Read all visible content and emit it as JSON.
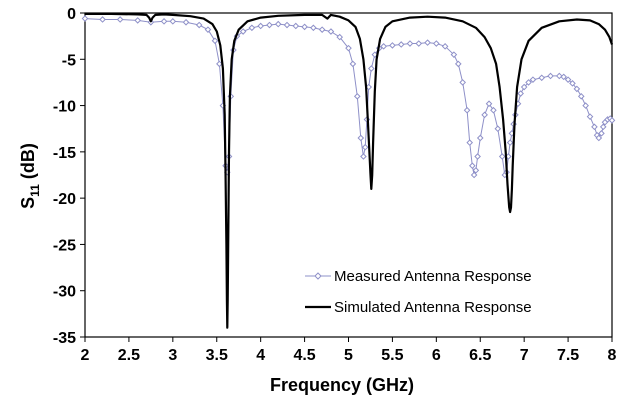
{
  "chart_data": {
    "type": "line",
    "title": "",
    "xlabel": "Frequency (GHz)",
    "ylabel_main": "S",
    "ylabel_sub": "11",
    "ylabel_unit": " (dB)",
    "xlim": [
      2,
      8
    ],
    "ylim": [
      -35,
      0
    ],
    "x_ticks": [
      2,
      2.5,
      3,
      3.5,
      4,
      4.5,
      5,
      5.5,
      6,
      6.5,
      7,
      7.5,
      8
    ],
    "y_ticks": [
      0,
      -5,
      -10,
      -15,
      -20,
      -25,
      -30,
      -35
    ],
    "x_tick_labels": [
      "2",
      "2.5",
      "3",
      "3.5",
      "4",
      "4.5",
      "5",
      "5.5",
      "6",
      "6.5",
      "7",
      "7.5",
      "8"
    ],
    "y_tick_labels": [
      "0",
      "-5",
      "-10",
      "-15",
      "-20",
      "-25",
      "-30",
      "-35"
    ],
    "grid": false,
    "legend_position": "bottom-right",
    "series": [
      {
        "name": "Measured Antenna Response",
        "color": "#8e90c8",
        "marker": "diamond",
        "x": [
          2.0,
          2.2,
          2.4,
          2.6,
          2.75,
          2.9,
          3.0,
          3.15,
          3.3,
          3.4,
          3.48,
          3.53,
          3.57,
          3.6,
          3.62,
          3.64,
          3.66,
          3.69,
          3.73,
          3.8,
          3.9,
          4.0,
          4.1,
          4.2,
          4.3,
          4.4,
          4.5,
          4.6,
          4.7,
          4.8,
          4.9,
          5.0,
          5.05,
          5.1,
          5.14,
          5.17,
          5.19,
          5.21,
          5.23,
          5.26,
          5.3,
          5.35,
          5.4,
          5.5,
          5.6,
          5.7,
          5.8,
          5.9,
          6.0,
          6.1,
          6.2,
          6.25,
          6.3,
          6.35,
          6.38,
          6.41,
          6.43,
          6.45,
          6.47,
          6.5,
          6.55,
          6.6,
          6.65,
          6.7,
          6.75,
          6.78,
          6.8,
          6.82,
          6.84,
          6.86,
          6.88,
          6.9,
          6.93,
          6.96,
          7.0,
          7.05,
          7.1,
          7.2,
          7.3,
          7.4,
          7.45,
          7.5,
          7.55,
          7.6,
          7.65,
          7.7,
          7.75,
          7.8,
          7.83,
          7.85,
          7.88,
          7.9,
          7.92,
          7.95,
          7.98,
          8.0
        ],
        "y": [
          -0.6,
          -0.7,
          -0.7,
          -0.8,
          -1.0,
          -0.9,
          -0.9,
          -1.0,
          -1.3,
          -1.8,
          -3.0,
          -5.5,
          -10.0,
          -16.5,
          -17.2,
          -15.5,
          -9.0,
          -4.0,
          -2.5,
          -2.0,
          -1.6,
          -1.4,
          -1.3,
          -1.2,
          -1.3,
          -1.4,
          -1.5,
          -1.6,
          -1.8,
          -2.0,
          -2.6,
          -3.8,
          -5.5,
          -9.0,
          -13.5,
          -15.5,
          -14.5,
          -11.5,
          -8.0,
          -6.0,
          -4.5,
          -3.8,
          -3.6,
          -3.5,
          -3.4,
          -3.3,
          -3.3,
          -3.2,
          -3.3,
          -3.6,
          -4.5,
          -5.5,
          -7.5,
          -10.5,
          -14.0,
          -16.5,
          -17.5,
          -17.0,
          -15.5,
          -13.5,
          -11.0,
          -9.8,
          -10.5,
          -12.5,
          -15.5,
          -17.5,
          -17.2,
          -15.5,
          -14.0,
          -13.0,
          -12.0,
          -11.0,
          -9.8,
          -8.7,
          -8.0,
          -7.5,
          -7.2,
          -7.0,
          -6.8,
          -6.8,
          -6.9,
          -7.2,
          -7.6,
          -8.2,
          -9.0,
          -10.0,
          -11.2,
          -12.3,
          -13.2,
          -13.5,
          -13.0,
          -12.3,
          -11.8,
          -11.5,
          -11.4,
          -11.6
        ]
      },
      {
        "name": "Simulated Antenna Response",
        "color": "#000000",
        "marker": "none",
        "x": [
          2.0,
          2.3,
          2.6,
          2.7,
          2.73,
          2.75,
          2.77,
          2.8,
          2.9,
          3.0,
          3.2,
          3.35,
          3.45,
          3.5,
          3.54,
          3.57,
          3.59,
          3.6,
          3.61,
          3.615,
          3.62,
          3.625,
          3.63,
          3.64,
          3.65,
          3.67,
          3.7,
          3.75,
          3.85,
          4.0,
          4.2,
          4.5,
          4.7,
          4.76,
          4.8,
          4.9,
          5.0,
          5.08,
          5.13,
          5.17,
          5.2,
          5.22,
          5.24,
          5.25,
          5.26,
          5.27,
          5.28,
          5.3,
          5.32,
          5.36,
          5.42,
          5.5,
          5.7,
          5.9,
          6.1,
          6.3,
          6.45,
          6.55,
          6.62,
          6.68,
          6.72,
          6.76,
          6.79,
          6.81,
          6.83,
          6.84,
          6.85,
          6.86,
          6.87,
          6.89,
          6.92,
          6.97,
          7.05,
          7.2,
          7.4,
          7.6,
          7.75,
          7.85,
          7.92,
          7.97,
          8.0
        ],
        "y": [
          -0.1,
          -0.1,
          -0.15,
          -0.2,
          -0.5,
          -0.9,
          -0.5,
          -0.2,
          -0.15,
          -0.2,
          -0.35,
          -0.6,
          -1.2,
          -2.0,
          -3.5,
          -6.0,
          -11.0,
          -17.0,
          -25.0,
          -31.0,
          -34.0,
          -31.0,
          -25.0,
          -15.0,
          -9.0,
          -5.0,
          -3.0,
          -1.8,
          -0.9,
          -0.5,
          -0.3,
          -0.2,
          -0.2,
          -0.6,
          -0.2,
          -0.4,
          -0.8,
          -1.5,
          -2.8,
          -5.0,
          -8.0,
          -11.5,
          -15.5,
          -17.5,
          -19.0,
          -17.5,
          -14.0,
          -8.5,
          -5.0,
          -2.8,
          -1.5,
          -0.9,
          -0.5,
          -0.4,
          -0.5,
          -0.9,
          -1.6,
          -2.6,
          -3.8,
          -5.5,
          -8.0,
          -11.5,
          -15.0,
          -18.5,
          -21.0,
          -21.5,
          -21.0,
          -19.0,
          -16.5,
          -12.0,
          -8.0,
          -5.0,
          -3.0,
          -1.6,
          -0.9,
          -0.7,
          -0.8,
          -1.2,
          -1.8,
          -2.6,
          -3.4
        ]
      }
    ]
  }
}
